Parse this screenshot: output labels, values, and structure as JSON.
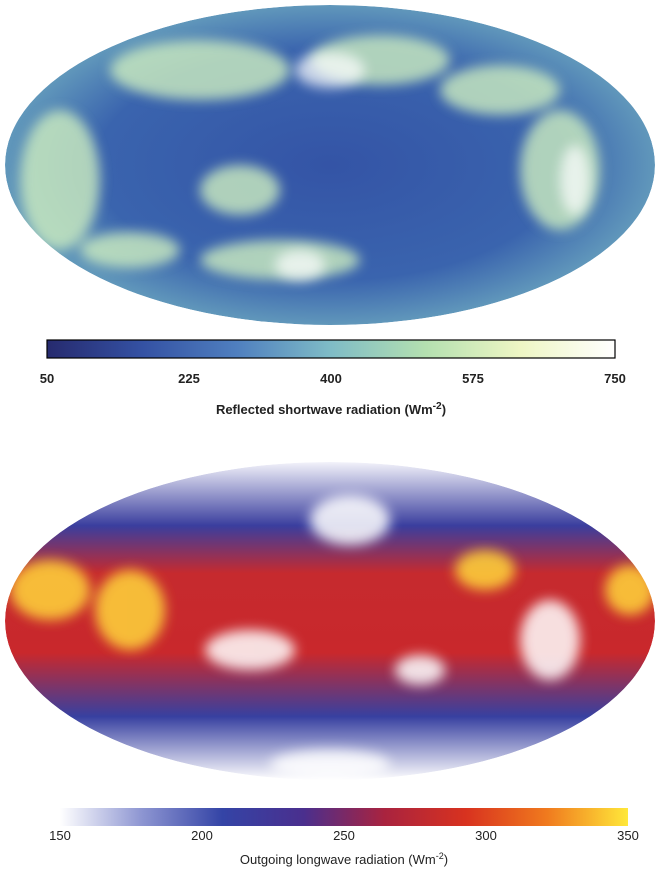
{
  "maps": [
    {
      "colorbar": {
        "lim": [
          50,
          750
        ],
        "ticks": [
          50,
          225,
          400,
          575,
          750
        ],
        "colors": [
          "#262a6e",
          "#3451a3",
          "#4f7fbf",
          "#7fbcc6",
          "#b4e0b0",
          "#eef6c4",
          "#ffffff"
        ],
        "border": true,
        "title": "Reflected shortwave radiation (Wm",
        "title_sup": "-2",
        "title_end": ")"
      }
    },
    {
      "colorbar": {
        "lim": [
          150,
          350
        ],
        "ticks": [
          150,
          200,
          250,
          300,
          350
        ],
        "colors": [
          "#ffffff",
          "#8e96d2",
          "#3444a6",
          "#4a2f8e",
          "#a9233f",
          "#d8321f",
          "#f07a1e",
          "#ffe83a"
        ],
        "border": false,
        "title": "Outgoing longwave radiation (Wm",
        "title_sup": "-2",
        "title_end": ")"
      }
    }
  ]
}
